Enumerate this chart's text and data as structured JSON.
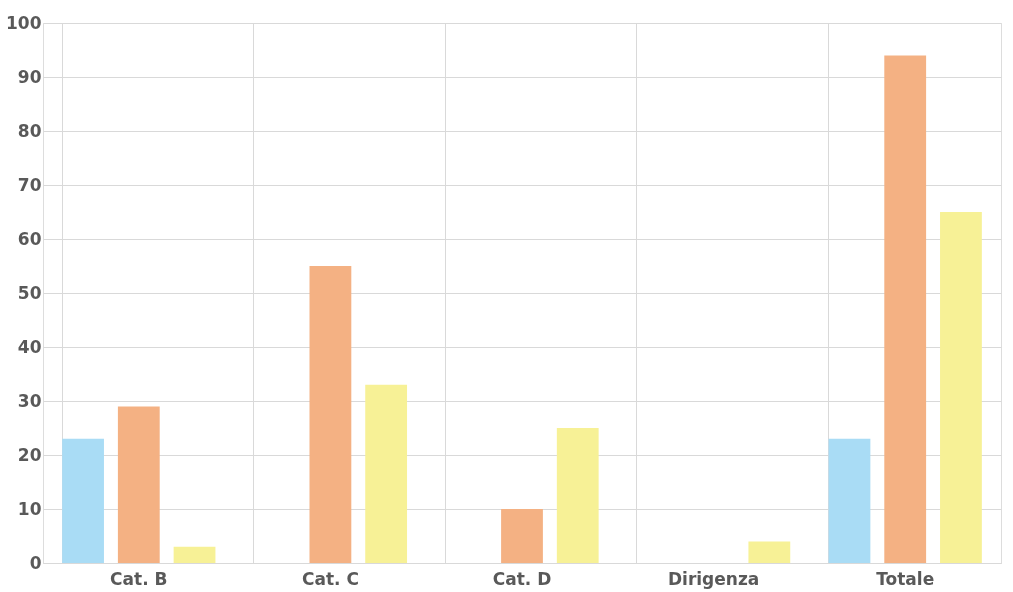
{
  "chart_data": {
    "type": "bar",
    "categories": [
      "Cat. B",
      "Cat. C",
      "Cat. D",
      "Dirigenza",
      "Totale"
    ],
    "series": [
      {
        "color": "#a9dcf5",
        "values": [
          23,
          null,
          null,
          null,
          23
        ]
      },
      {
        "color": "#f4b183",
        "values": [
          29,
          55,
          10,
          null,
          94
        ]
      },
      {
        "color": "#f7f196",
        "values": [
          3,
          33,
          25,
          4,
          65
        ]
      }
    ],
    "ylim": [
      0,
      100
    ],
    "yticks": [
      0,
      10,
      20,
      30,
      40,
      50,
      60,
      70,
      80,
      90,
      100
    ],
    "grid": true,
    "legend": false
  }
}
